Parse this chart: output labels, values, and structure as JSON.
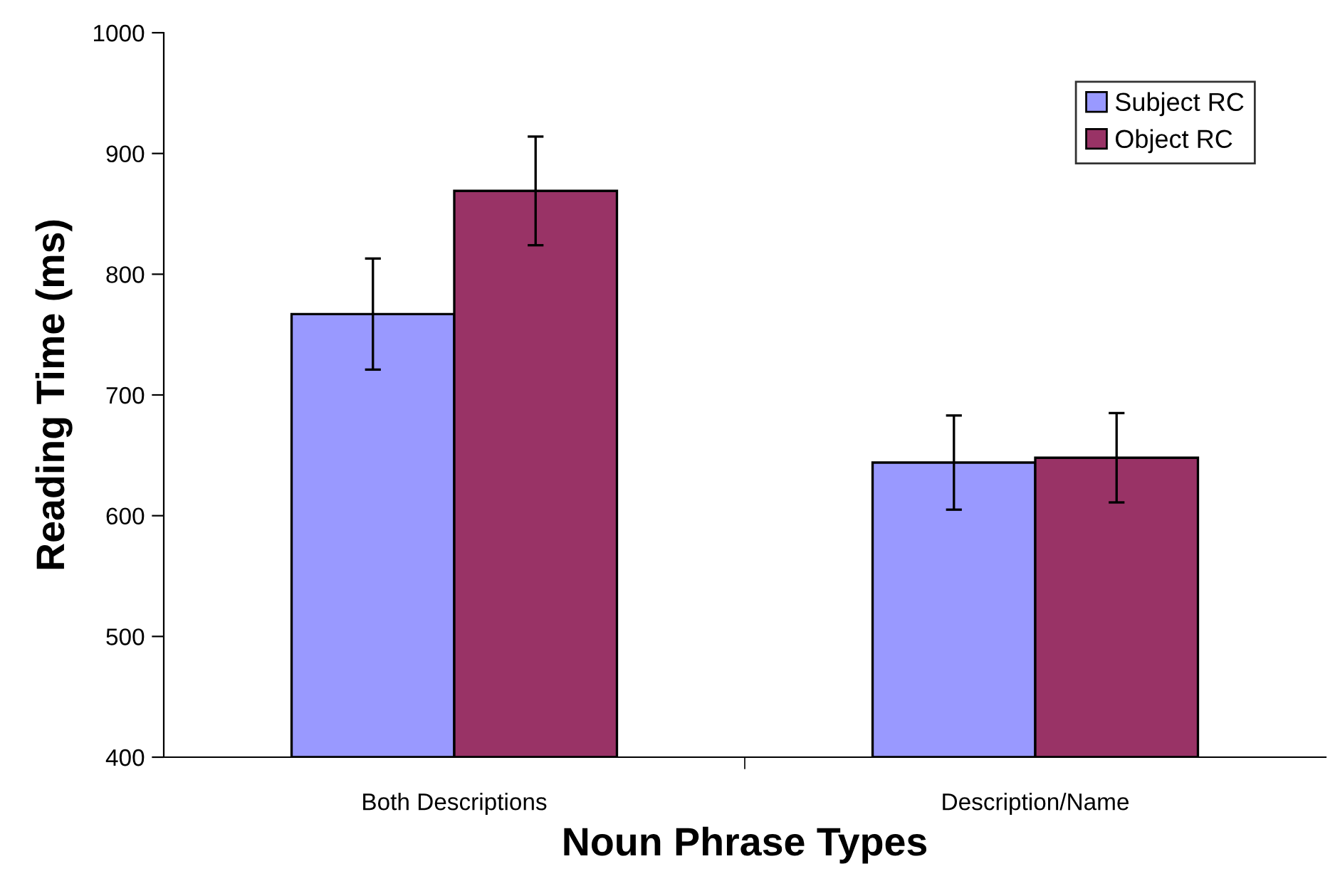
{
  "chart_data": {
    "type": "bar",
    "xlabel": "Noun Phrase Types",
    "ylabel": "Reading Time (ms)",
    "categories": [
      "Both Descriptions",
      "Description/Name"
    ],
    "series": [
      {
        "name": "Subject RC",
        "color": "#9999ff",
        "values": [
          767,
          644
        ],
        "errors": [
          46,
          39
        ]
      },
      {
        "name": "Object RC",
        "color": "#993366",
        "values": [
          869,
          648
        ],
        "errors": [
          45,
          37
        ]
      }
    ],
    "ylim": [
      400,
      1000
    ],
    "yticks": [
      400,
      500,
      600,
      700,
      800,
      900,
      1000
    ],
    "grid": false,
    "legend": "top right"
  }
}
